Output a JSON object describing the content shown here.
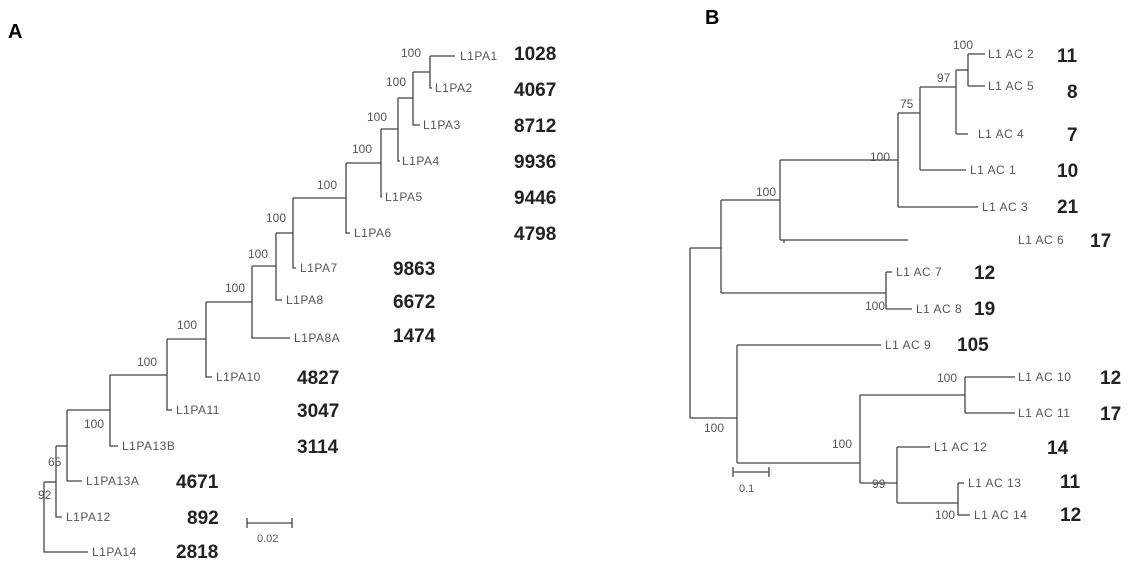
{
  "panels": [
    {
      "letter": "A",
      "taxa": [
        {
          "label": "L1PA1",
          "count": "1028"
        },
        {
          "label": "L1PA2",
          "count": "4067"
        },
        {
          "label": "L1PA3",
          "count": "8712"
        },
        {
          "label": "L1PA4",
          "count": "9936"
        },
        {
          "label": "L1PA5",
          "count": "9446"
        },
        {
          "label": "L1PA6",
          "count": "4798"
        },
        {
          "label": "L1PA7",
          "count": "9863"
        },
        {
          "label": "L1PA8",
          "count": "6672"
        },
        {
          "label": "L1PA8A",
          "count": "1474"
        },
        {
          "label": "L1PA10",
          "count": "4827"
        },
        {
          "label": "L1PA11",
          "count": "3047"
        },
        {
          "label": "L1PA13B",
          "count": "3114"
        },
        {
          "label": "L1PA13A",
          "count": "4671"
        },
        {
          "label": "L1PA12",
          "count": "892"
        },
        {
          "label": "L1PA14",
          "count": "2818"
        }
      ],
      "bootstrap": [
        "100",
        "100",
        "100",
        "100",
        "100",
        "100",
        "100",
        "100",
        "100",
        "100",
        "100",
        "65",
        "92"
      ],
      "scale_bar": "0.02"
    },
    {
      "letter": "B",
      "taxa": [
        {
          "label": "L1 AC 2",
          "count": "11"
        },
        {
          "label": "L1 AC 5",
          "count": "8"
        },
        {
          "label": "L1 AC 4",
          "count": "7"
        },
        {
          "label": "L1 AC 1",
          "count": "10"
        },
        {
          "label": "L1 AC 3",
          "count": "21"
        },
        {
          "label": "L1 AC 6",
          "count": "17"
        },
        {
          "label": "L1 AC 7",
          "count": "12"
        },
        {
          "label": "L1 AC 8",
          "count": "19"
        },
        {
          "label": "L1 AC 9",
          "count": "105"
        },
        {
          "label": "L1 AC 10",
          "count": "12"
        },
        {
          "label": "L1 AC 11",
          "count": "17"
        },
        {
          "label": "L1 AC 12",
          "count": "14"
        },
        {
          "label": "L1 AC 13",
          "count": "11"
        },
        {
          "label": "L1 AC 14",
          "count": "12"
        }
      ],
      "bootstrap": [
        "100",
        "97",
        "75",
        "100",
        "100",
        "100",
        "100",
        "100",
        "100",
        "99",
        "100"
      ],
      "scale_bar": "0.1"
    }
  ]
}
